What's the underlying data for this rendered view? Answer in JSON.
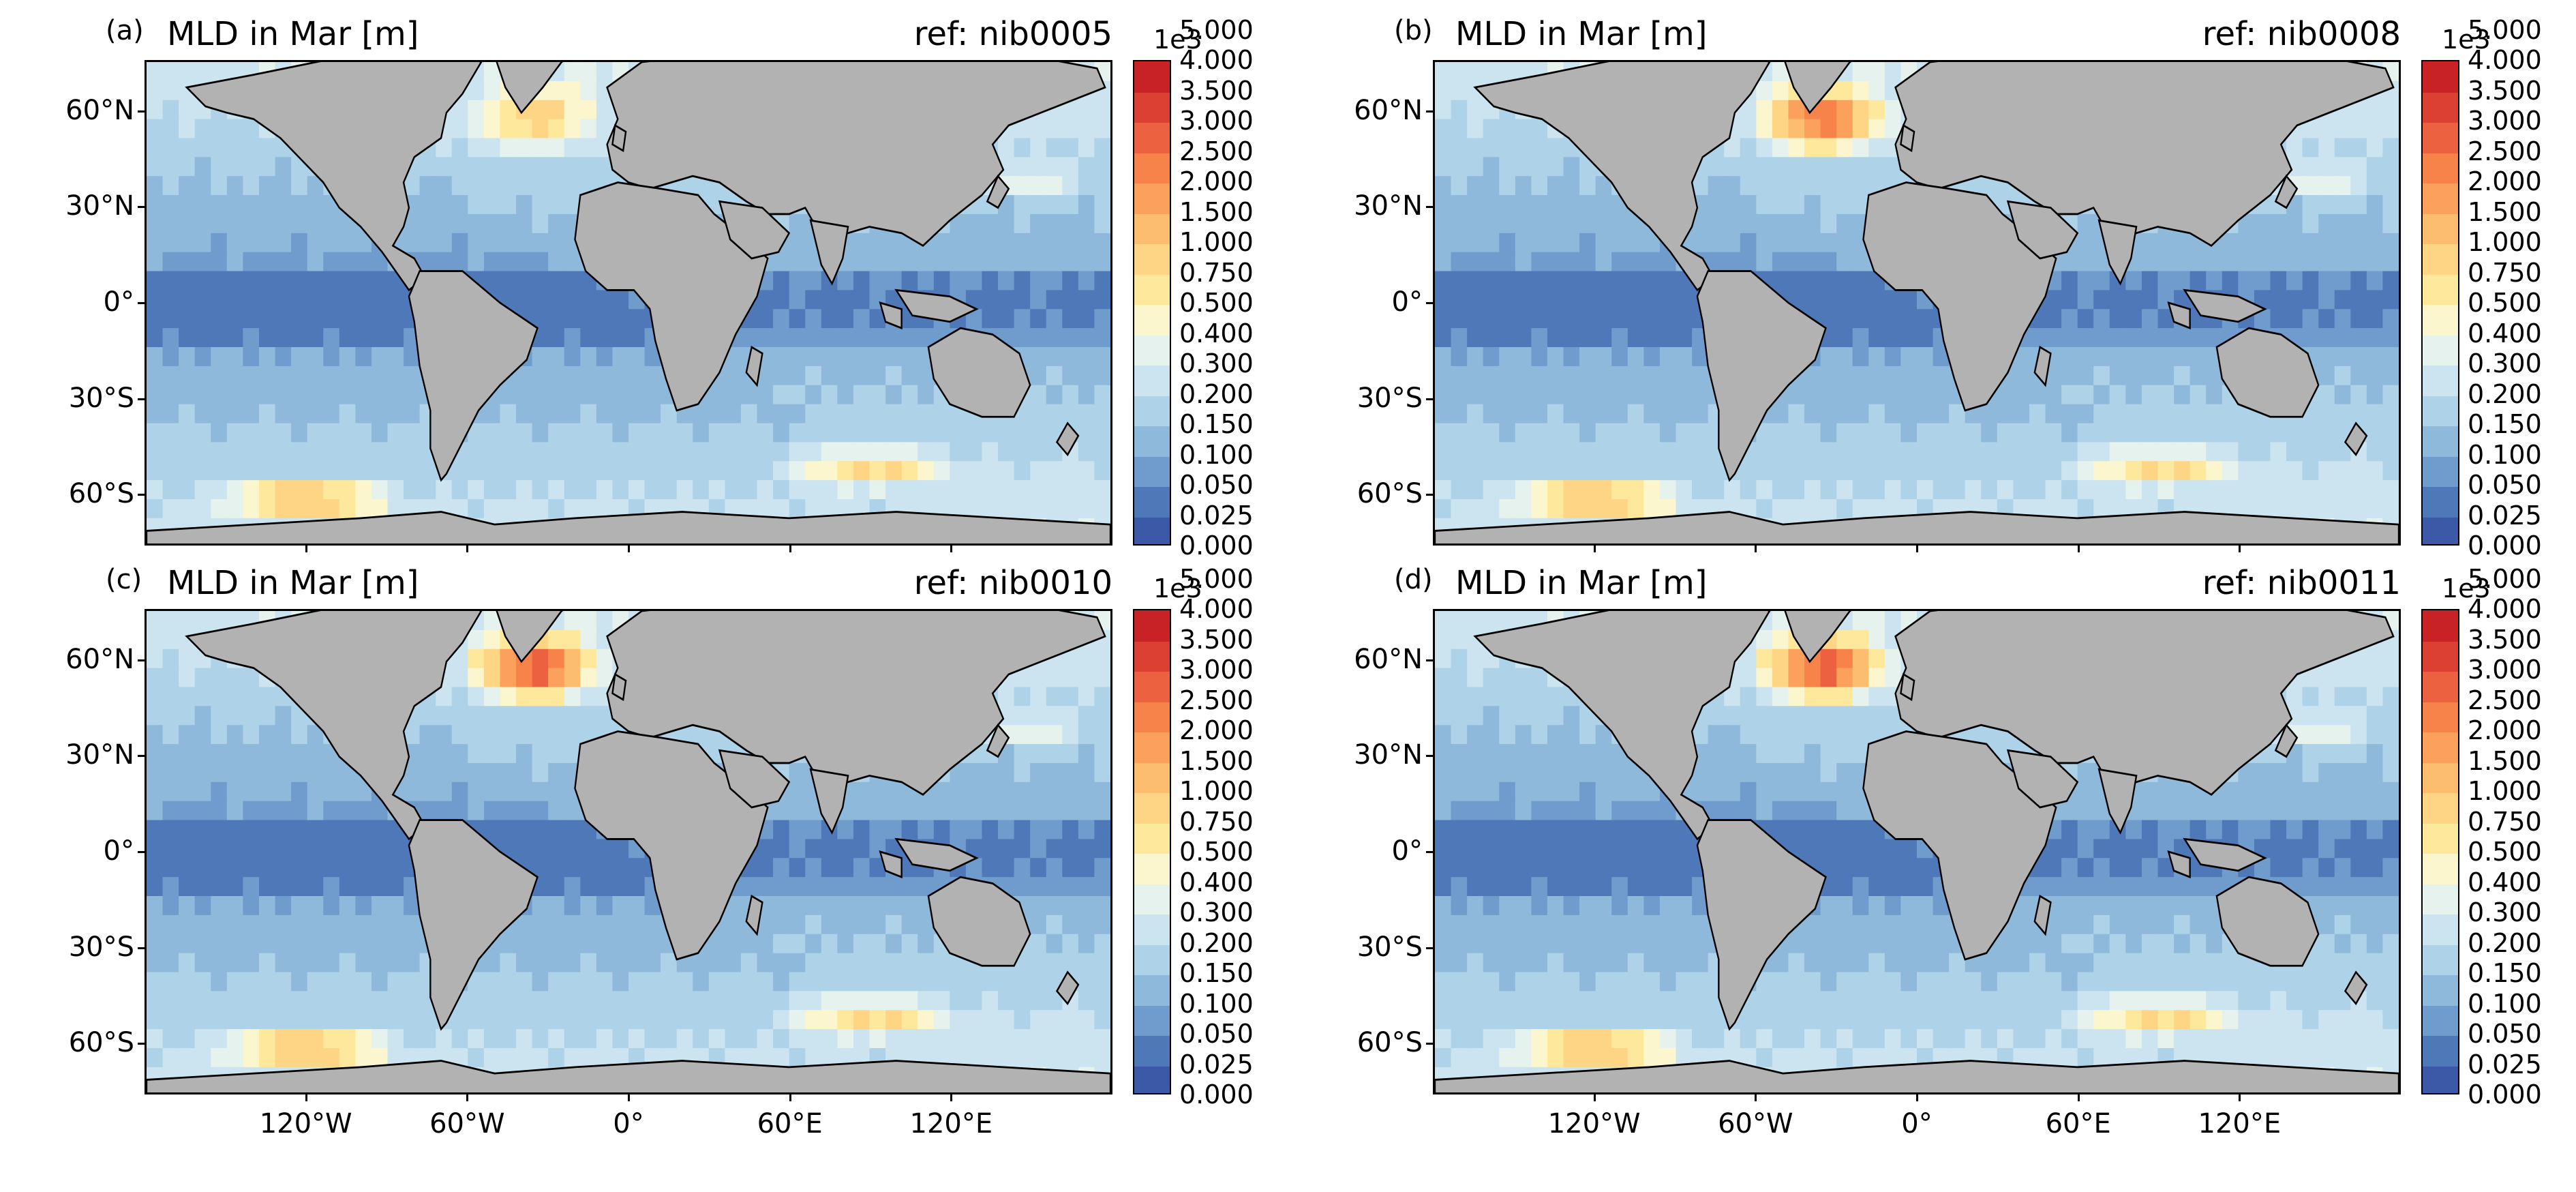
{
  "colors": {
    "land": "#b2b2b2",
    "levels": [
      "#3b59a6",
      "#4f78b9",
      "#6f9ccc",
      "#8fb9db",
      "#aed2e7",
      "#cbe4ef",
      "#e6f2ee",
      "#fbf6cd",
      "#fde89c",
      "#fdd585",
      "#fdbd6e",
      "#fca15c",
      "#f7834a",
      "#ec6240",
      "#db4033",
      "#c82126"
    ]
  },
  "colorbar": {
    "exponent": "1e3",
    "ticks": [
      "0.000",
      "0.025",
      "0.050",
      "0.100",
      "0.150",
      "0.200",
      "0.300",
      "0.400",
      "0.500",
      "0.750",
      "1.000",
      "1.500",
      "2.000",
      "2.500",
      "3.000",
      "3.500",
      "4.000",
      "5.000"
    ]
  },
  "axes": {
    "y_ticks": [
      "60°N",
      "30°N",
      "0°",
      "30°S",
      "60°S"
    ],
    "x_ticks": [
      "120°W",
      "60°W",
      "0°",
      "60°E",
      "120°E"
    ]
  },
  "panels": [
    {
      "label": "(a)",
      "title": "MLD in Mar [m]",
      "ref": "ref: nib0005",
      "show_xticks": false
    },
    {
      "label": "(b)",
      "title": "MLD in Mar [m]",
      "ref": "ref: nib0008",
      "show_xticks": false
    },
    {
      "label": "(c)",
      "title": "MLD in Mar [m]",
      "ref": "ref: nib0010",
      "show_xticks": true
    },
    {
      "label": "(d)",
      "title": "MLD in Mar [m]",
      "ref": "ref: nib0011",
      "show_xticks": true
    }
  ]
}
